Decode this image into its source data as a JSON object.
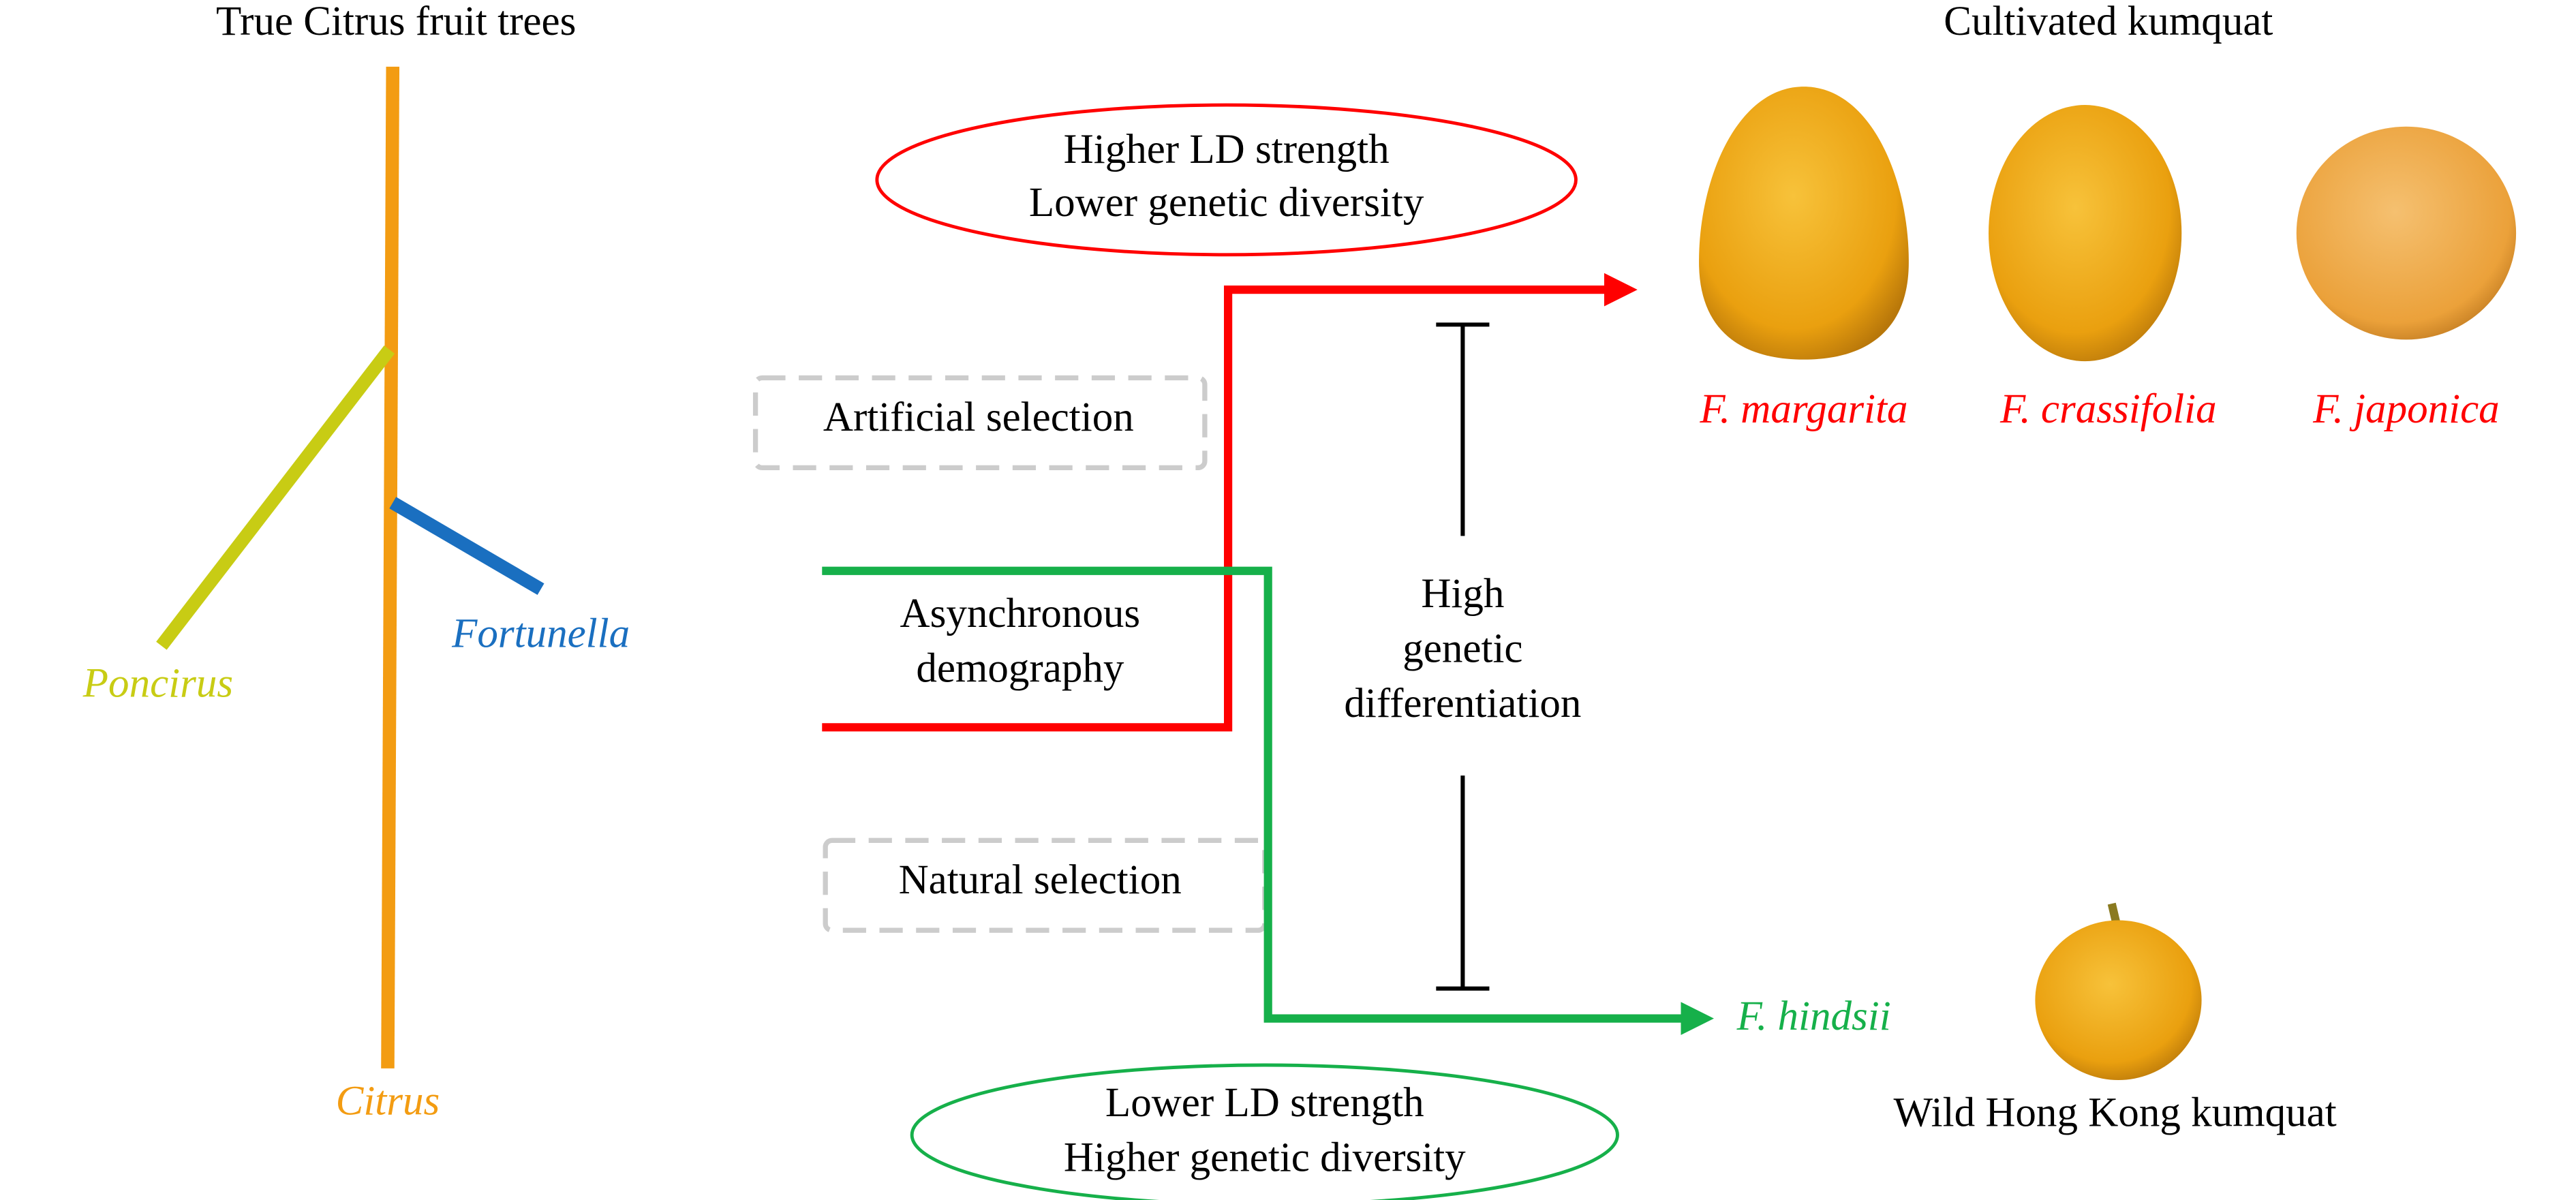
{
  "left_tree": {
    "title": "True Citrus fruit trees",
    "labels": {
      "poncirus": "Poncirus",
      "fortunella": "Fortunella",
      "citrus": "Citrus"
    }
  },
  "cultivated": {
    "title": "Cultivated kumquat",
    "species": [
      "F. margarita",
      "F. crassifolia",
      "F. japonica"
    ]
  },
  "wild": {
    "species": "F. hindsii",
    "label": "Wild Hong Kong kumquat"
  },
  "ellipses": {
    "top": [
      "Higher LD strength",
      "Lower genetic diversity"
    ],
    "bottom": [
      "Lower LD strength",
      "Higher genetic diversity"
    ]
  },
  "boxes": {
    "artificial": "Artificial selection",
    "natural": "Natural selection"
  },
  "center": {
    "demography": [
      "Asynchronous",
      "demography"
    ],
    "differentiation": [
      "High",
      "genetic",
      "differentiation"
    ]
  }
}
